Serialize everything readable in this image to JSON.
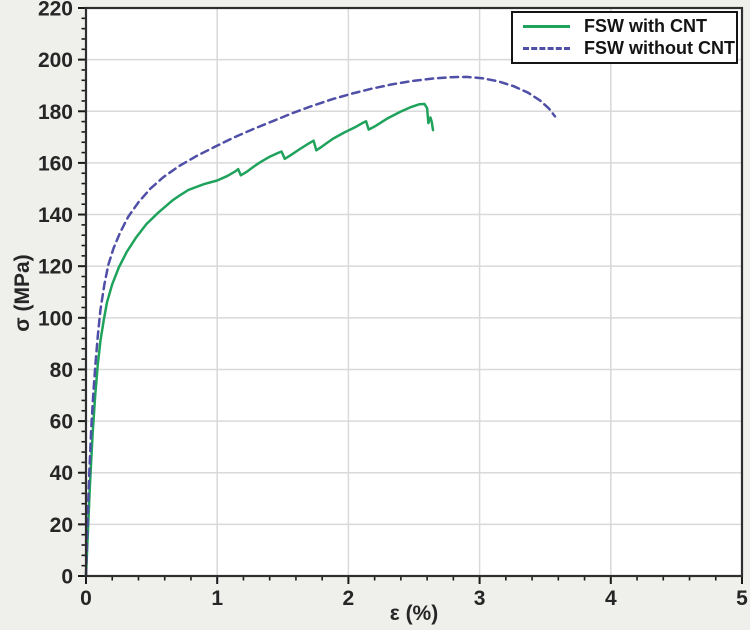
{
  "figure": {
    "background_color": "#efefec",
    "plot_background_color": "#ffffff",
    "frame_color": "#2f2f2f",
    "grid_color": "#d9d9d9",
    "tick_color": "#1a1a1a",
    "tick_label_color": "#262626"
  },
  "chart_data": {
    "type": "line",
    "title": "",
    "xlabel": "ε (%)",
    "ylabel": "σ (MPa)",
    "xlim": [
      0,
      5
    ],
    "ylim": [
      0,
      220
    ],
    "x_major_ticks": [
      0,
      1,
      2,
      3,
      4,
      5
    ],
    "y_major_ticks": [
      0,
      20,
      40,
      60,
      80,
      100,
      120,
      140,
      160,
      180,
      200,
      220
    ],
    "x_minor_step": 0.2,
    "y_minor_step": 4,
    "grid": true,
    "legend_position": "top-right",
    "series": [
      {
        "name": "FSW with CNT",
        "color": "#1fa25c",
        "style": "solid",
        "points": [
          [
            0,
            0
          ],
          [
            0.015,
            18
          ],
          [
            0.03,
            35
          ],
          [
            0.05,
            55
          ],
          [
            0.07,
            70
          ],
          [
            0.09,
            82
          ],
          [
            0.11,
            91
          ],
          [
            0.135,
            99
          ],
          [
            0.16,
            106
          ],
          [
            0.2,
            113
          ],
          [
            0.25,
            119.5
          ],
          [
            0.31,
            125.5
          ],
          [
            0.38,
            131
          ],
          [
            0.46,
            136.3
          ],
          [
            0.55,
            140.7
          ],
          [
            0.66,
            145.5
          ],
          [
            0.72,
            147.6
          ],
          [
            0.78,
            149.5
          ],
          [
            0.9,
            151.8
          ],
          [
            1.0,
            153.2
          ],
          [
            1.08,
            155
          ],
          [
            1.14,
            156.8
          ],
          [
            1.16,
            157.6
          ],
          [
            1.18,
            155.2
          ],
          [
            1.22,
            156.4
          ],
          [
            1.28,
            158.6
          ],
          [
            1.33,
            160.3
          ],
          [
            1.4,
            162.4
          ],
          [
            1.46,
            163.8
          ],
          [
            1.49,
            164.4
          ],
          [
            1.515,
            161.6
          ],
          [
            1.56,
            163
          ],
          [
            1.63,
            165.4
          ],
          [
            1.7,
            167.6
          ],
          [
            1.735,
            168.6
          ],
          [
            1.755,
            164.9
          ],
          [
            1.8,
            166.4
          ],
          [
            1.88,
            169.3
          ],
          [
            1.97,
            171.8
          ],
          [
            2.05,
            173.8
          ],
          [
            2.11,
            175.5
          ],
          [
            2.135,
            176.1
          ],
          [
            2.155,
            172.9
          ],
          [
            2.21,
            174.4
          ],
          [
            2.3,
            177.3
          ],
          [
            2.4,
            179.9
          ],
          [
            2.48,
            181.7
          ],
          [
            2.54,
            182.7
          ],
          [
            2.58,
            182.8
          ],
          [
            2.6,
            181.2
          ],
          [
            2.61,
            175.4
          ],
          [
            2.625,
            177.6
          ],
          [
            2.635,
            176.0
          ],
          [
            2.645,
            172.7
          ]
        ]
      },
      {
        "name": "FSW without CNT",
        "color": "#504fa8",
        "style": "dashed",
        "points": [
          [
            0,
            0
          ],
          [
            0.01,
            18
          ],
          [
            0.025,
            40
          ],
          [
            0.04,
            57
          ],
          [
            0.055,
            70
          ],
          [
            0.07,
            81
          ],
          [
            0.09,
            93
          ],
          [
            0.11,
            103
          ],
          [
            0.14,
            113
          ],
          [
            0.17,
            120.5
          ],
          [
            0.21,
            127
          ],
          [
            0.26,
            133
          ],
          [
            0.32,
            139
          ],
          [
            0.4,
            144.8
          ],
          [
            0.49,
            150
          ],
          [
            0.59,
            154.5
          ],
          [
            0.71,
            158.8
          ],
          [
            0.84,
            162.6
          ],
          [
            0.98,
            166.2
          ],
          [
            1.13,
            169.9
          ],
          [
            1.28,
            173.2
          ],
          [
            1.43,
            176.3
          ],
          [
            1.58,
            179.4
          ],
          [
            1.73,
            182.2
          ],
          [
            1.88,
            184.7
          ],
          [
            2.03,
            186.9
          ],
          [
            2.18,
            188.8
          ],
          [
            2.33,
            190.4
          ],
          [
            2.48,
            191.7
          ],
          [
            2.63,
            192.6
          ],
          [
            2.78,
            193.2
          ],
          [
            2.9,
            193.3
          ],
          [
            3.02,
            192.8
          ],
          [
            3.14,
            191.6
          ],
          [
            3.26,
            189.7
          ],
          [
            3.37,
            187.2
          ],
          [
            3.46,
            184.2
          ],
          [
            3.53,
            181
          ],
          [
            3.575,
            178
          ]
        ]
      }
    ]
  }
}
